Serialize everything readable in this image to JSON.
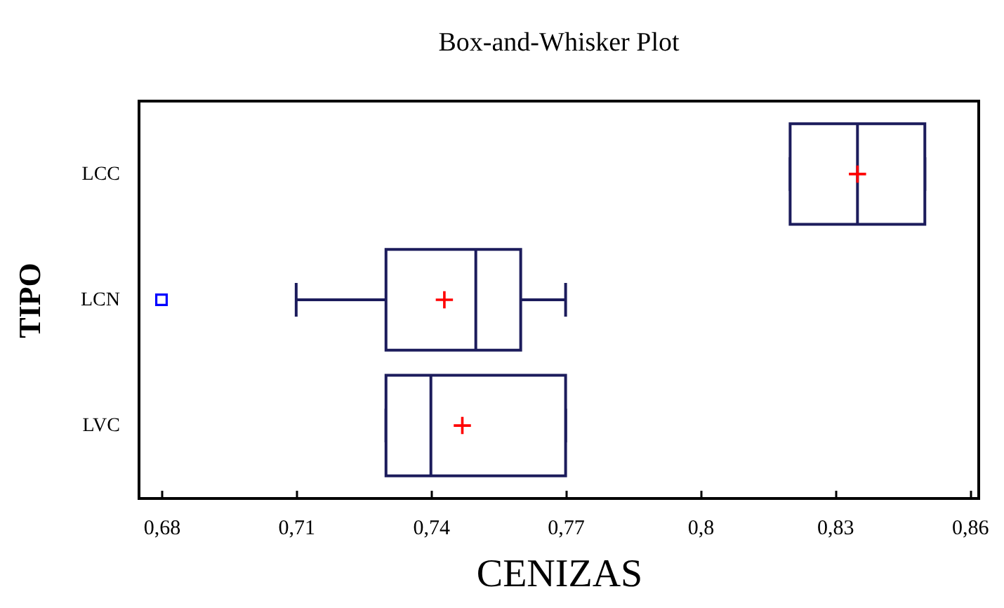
{
  "chart_data": {
    "type": "box",
    "title": "Box-and-Whisker Plot",
    "xlabel": "CENIZAS",
    "ylabel": "TIPO",
    "orientation": "horizontal",
    "categories": [
      "LCC",
      "LCN",
      "LVC"
    ],
    "series": [
      {
        "color": "#1c1c5c",
        "boxes": [
          {
            "low": 0.82,
            "q1": 0.82,
            "median": 0.835,
            "q3": 0.85,
            "high": 0.85,
            "mean": 0.835
          },
          {
            "low": 0.71,
            "q1": 0.73,
            "median": 0.75,
            "q3": 0.76,
            "high": 0.77,
            "mean": 0.743,
            "outliers": [
              0.68
            ]
          },
          {
            "low": 0.73,
            "q1": 0.73,
            "median": 0.74,
            "q3": 0.77,
            "high": 0.77,
            "mean": 0.747
          }
        ]
      }
    ],
    "xlim": [
      0.675,
      0.862
    ],
    "xticks": [
      {
        "value": 0.68,
        "label": "0,68"
      },
      {
        "value": 0.71,
        "label": "0,71"
      },
      {
        "value": 0.74,
        "label": "0,74"
      },
      {
        "value": 0.77,
        "label": "0,77"
      },
      {
        "value": 0.8,
        "label": "0,8"
      },
      {
        "value": 0.83,
        "label": "0,83"
      },
      {
        "value": 0.86,
        "label": "0,86"
      }
    ]
  }
}
